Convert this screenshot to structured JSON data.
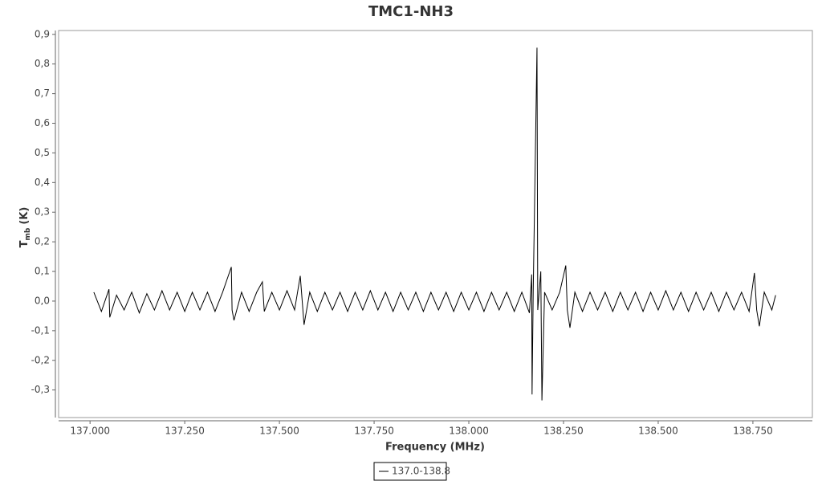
{
  "chart_data": {
    "type": "line",
    "title": "TMC1-NH3",
    "xlabel": "Frequency (MHz)",
    "ylabel": "T",
    "ylabel_sub": "mb",
    "ylabel_unit": "(K)",
    "xlim": [
      136.917,
      138.907
    ],
    "ylim": [
      -0.393,
      0.913
    ],
    "xticks": [
      {
        "value": 137.0,
        "label": "137.000"
      },
      {
        "value": 137.25,
        "label": "137.250"
      },
      {
        "value": 137.5,
        "label": "137.500"
      },
      {
        "value": 137.75,
        "label": "137.750"
      },
      {
        "value": 138.0,
        "label": "138.000"
      },
      {
        "value": 138.25,
        "label": "138.250"
      },
      {
        "value": 138.5,
        "label": "138.500"
      },
      {
        "value": 138.75,
        "label": "138.750"
      }
    ],
    "yticks": [
      {
        "value": 0.9,
        "label": "0,9"
      },
      {
        "value": 0.8,
        "label": "0,8"
      },
      {
        "value": 0.7,
        "label": "0,7"
      },
      {
        "value": 0.6,
        "label": "0,6"
      },
      {
        "value": 0.5,
        "label": "0,5"
      },
      {
        "value": 0.4,
        "label": "0,4"
      },
      {
        "value": 0.3,
        "label": "0,3"
      },
      {
        "value": 0.2,
        "label": "0,2"
      },
      {
        "value": 0.1,
        "label": "0,1"
      },
      {
        "value": 0.0,
        "label": "0,0"
      },
      {
        "value": -0.1,
        "label": "-0,1"
      },
      {
        "value": -0.2,
        "label": "-0,2"
      },
      {
        "value": -0.3,
        "label": "-0,3"
      }
    ],
    "grid": false,
    "legend": "bottom",
    "x": [
      137.01,
      137.03,
      137.05,
      137.052,
      137.07,
      137.09,
      137.11,
      137.13,
      137.15,
      137.17,
      137.19,
      137.21,
      137.23,
      137.25,
      137.27,
      137.29,
      137.31,
      137.33,
      137.35,
      137.373,
      137.375,
      137.38,
      137.4,
      137.42,
      137.44,
      137.455,
      137.46,
      137.48,
      137.5,
      137.52,
      137.54,
      137.555,
      137.565,
      137.58,
      137.6,
      137.62,
      137.64,
      137.66,
      137.68,
      137.7,
      137.72,
      137.74,
      137.76,
      137.78,
      137.8,
      137.82,
      137.84,
      137.86,
      137.88,
      137.9,
      137.92,
      137.94,
      137.96,
      137.98,
      138.0,
      138.02,
      138.04,
      138.06,
      138.08,
      138.1,
      138.12,
      138.14,
      138.16,
      138.166,
      138.167,
      138.17,
      138.18,
      138.182,
      138.19,
      138.193,
      138.2,
      138.22,
      138.24,
      138.256,
      138.26,
      138.267,
      138.28,
      138.3,
      138.32,
      138.34,
      138.36,
      138.38,
      138.4,
      138.42,
      138.44,
      138.46,
      138.48,
      138.5,
      138.52,
      138.54,
      138.56,
      138.58,
      138.6,
      138.62,
      138.64,
      138.66,
      138.68,
      138.7,
      138.72,
      138.74,
      138.754,
      138.76,
      138.767,
      138.78,
      138.8,
      138.81
    ],
    "series": [
      {
        "name": "137.0-138.8",
        "color": "#000000",
        "values": [
          0.03,
          -0.035,
          0.04,
          -0.055,
          0.02,
          -0.03,
          0.03,
          -0.04,
          0.025,
          -0.03,
          0.035,
          -0.03,
          0.03,
          -0.035,
          0.03,
          -0.03,
          0.03,
          -0.035,
          0.03,
          0.115,
          -0.03,
          -0.065,
          0.03,
          -0.035,
          0.03,
          0.065,
          -0.035,
          0.03,
          -0.03,
          0.035,
          -0.03,
          0.085,
          -0.08,
          0.03,
          -0.035,
          0.03,
          -0.03,
          0.03,
          -0.035,
          0.03,
          -0.03,
          0.035,
          -0.03,
          0.03,
          -0.035,
          0.03,
          -0.03,
          0.03,
          -0.035,
          0.03,
          -0.03,
          0.03,
          -0.035,
          0.03,
          -0.03,
          0.03,
          -0.035,
          0.03,
          -0.03,
          0.03,
          -0.035,
          0.03,
          -0.04,
          0.09,
          -0.315,
          0.03,
          0.855,
          -0.03,
          0.1,
          -0.335,
          0.03,
          -0.03,
          0.03,
          0.12,
          -0.03,
          -0.09,
          0.03,
          -0.035,
          0.03,
          -0.03,
          0.03,
          -0.035,
          0.03,
          -0.03,
          0.03,
          -0.035,
          0.03,
          -0.03,
          0.035,
          -0.03,
          0.03,
          -0.035,
          0.03,
          -0.03,
          0.03,
          -0.035,
          0.03,
          -0.03,
          0.03,
          -0.035,
          0.095,
          -0.03,
          -0.085,
          0.03,
          -0.03,
          0.02
        ]
      }
    ]
  }
}
